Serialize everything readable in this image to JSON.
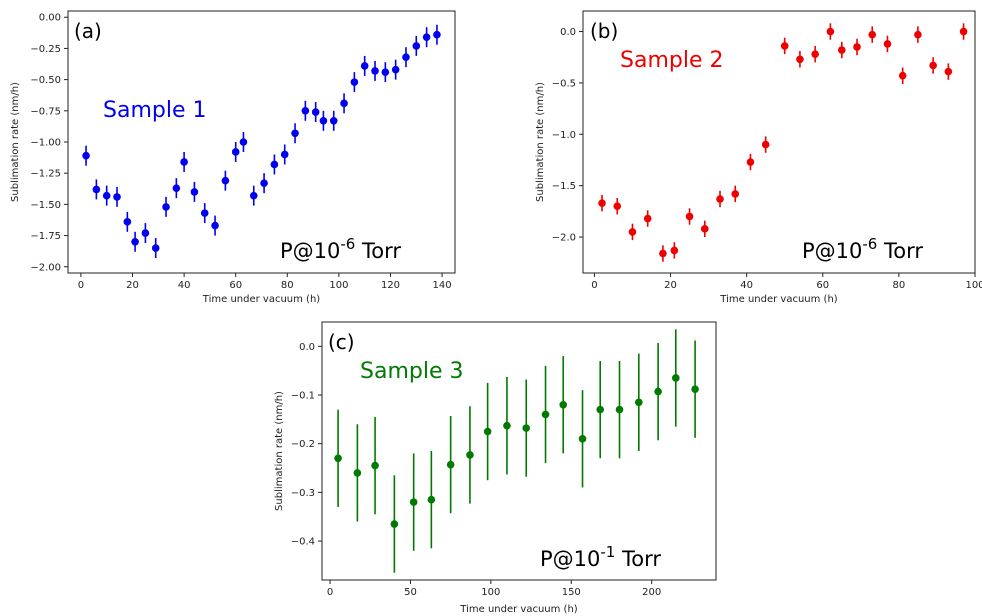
{
  "chart_data": [
    {
      "type": "scatter",
      "panel_label": "(a)",
      "sample_label": "Sample 1",
      "annotation": {
        "prefix": "P@10",
        "exponent": "-6",
        "suffix": " Torr"
      },
      "xlabel": "Time under vacuum (h)",
      "ylabel": "Sublimation rate (nm/h)",
      "xlim": [
        -5,
        145
      ],
      "ylim": [
        -2.05,
        0.05
      ],
      "xticks": [
        0,
        20,
        40,
        60,
        80,
        100,
        120,
        140
      ],
      "yticks": [
        0.0,
        -0.25,
        -0.5,
        -0.75,
        -1.0,
        -1.25,
        -1.5,
        -1.75,
        -2.0
      ],
      "ytick_labels": [
        "0.00",
        "−0.25",
        "−0.50",
        "−0.75",
        "−1.00",
        "−1.25",
        "−1.50",
        "−1.75",
        "−2.00"
      ],
      "color": "#0000ee",
      "series": [
        {
          "x": [
            2,
            6,
            10,
            14,
            18,
            21,
            25,
            29,
            33,
            37,
            40,
            44,
            48,
            52,
            56,
            60,
            63,
            67,
            71,
            75,
            79,
            83,
            87,
            91,
            94,
            98,
            102,
            106,
            110,
            114,
            118,
            122,
            126,
            130,
            134,
            138
          ],
          "y": [
            -1.11,
            -1.38,
            -1.43,
            -1.44,
            -1.64,
            -1.8,
            -1.73,
            -1.85,
            -1.52,
            -1.37,
            -1.16,
            -1.4,
            -1.57,
            -1.67,
            -1.31,
            -1.08,
            -1.0,
            -1.43,
            -1.33,
            -1.18,
            -1.1,
            -0.93,
            -0.75,
            -0.76,
            -0.83,
            -0.83,
            -0.69,
            -0.52,
            -0.39,
            -0.43,
            -0.44,
            -0.42,
            -0.32,
            -0.23,
            -0.16,
            -0.14
          ],
          "err": 0.08
        }
      ]
    },
    {
      "type": "scatter",
      "panel_label": "(b)",
      "sample_label": "Sample 2",
      "annotation": {
        "prefix": "P@10",
        "exponent": "-6",
        "suffix": " Torr"
      },
      "xlabel": "Time under vacuum (h)",
      "ylabel": "Sublimation rate (nm/h)",
      "xlim": [
        -3,
        100
      ],
      "ylim": [
        -2.35,
        0.2
      ],
      "xticks": [
        0,
        20,
        40,
        60,
        80,
        100
      ],
      "yticks": [
        0.0,
        -0.5,
        -1.0,
        -1.5,
        -2.0
      ],
      "ytick_labels": [
        "0.0",
        "−0.5",
        "−1.0",
        "−1.5",
        "−2.0"
      ],
      "color": "#ee0000",
      "series": [
        {
          "x": [
            2,
            6,
            10,
            14,
            18,
            21,
            25,
            29,
            33,
            37,
            41,
            45,
            50,
            54,
            58,
            62,
            65,
            69,
            73,
            77,
            81,
            85,
            89,
            93,
            97
          ],
          "y": [
            -1.67,
            -1.7,
            -1.95,
            -1.82,
            -2.16,
            -2.13,
            -1.8,
            -1.92,
            -1.63,
            -1.58,
            -1.27,
            -1.1,
            -0.14,
            -0.27,
            -0.22,
            0.0,
            -0.18,
            -0.15,
            -0.03,
            -0.12,
            -0.43,
            -0.03,
            -0.33,
            -0.39,
            0.0
          ]
        }
      ],
      "err": 0.08
    },
    {
      "type": "scatter",
      "panel_label": "(c)",
      "sample_label": "Sample 3",
      "annotation": {
        "prefix": "P@10",
        "exponent": "-1",
        "suffix": " Torr"
      },
      "xlabel": "Time under vacuum (h)",
      "ylabel": "Sublimation rate (nm/h)",
      "xlim": [
        -5,
        240
      ],
      "ylim": [
        -0.48,
        0.05
      ],
      "xticks": [
        0,
        50,
        100,
        150,
        200
      ],
      "yticks": [
        0.0,
        -0.1,
        -0.2,
        -0.3,
        -0.4
      ],
      "ytick_labels": [
        "0.0",
        "−0.1",
        "−0.2",
        "−0.3",
        "−0.4"
      ],
      "color": "#007a00",
      "series": [
        {
          "x": [
            5,
            17,
            28,
            40,
            52,
            63,
            75,
            87,
            98,
            110,
            122,
            134,
            145,
            157,
            168,
            180,
            192,
            204,
            215,
            227
          ],
          "y": [
            -0.23,
            -0.26,
            -0.245,
            -0.365,
            -0.32,
            -0.315,
            -0.243,
            -0.223,
            -0.175,
            -0.163,
            -0.168,
            -0.14,
            -0.12,
            -0.19,
            -0.13,
            -0.13,
            -0.115,
            -0.093,
            -0.065,
            -0.088
          ]
        }
      ],
      "err": 0.1
    }
  ]
}
